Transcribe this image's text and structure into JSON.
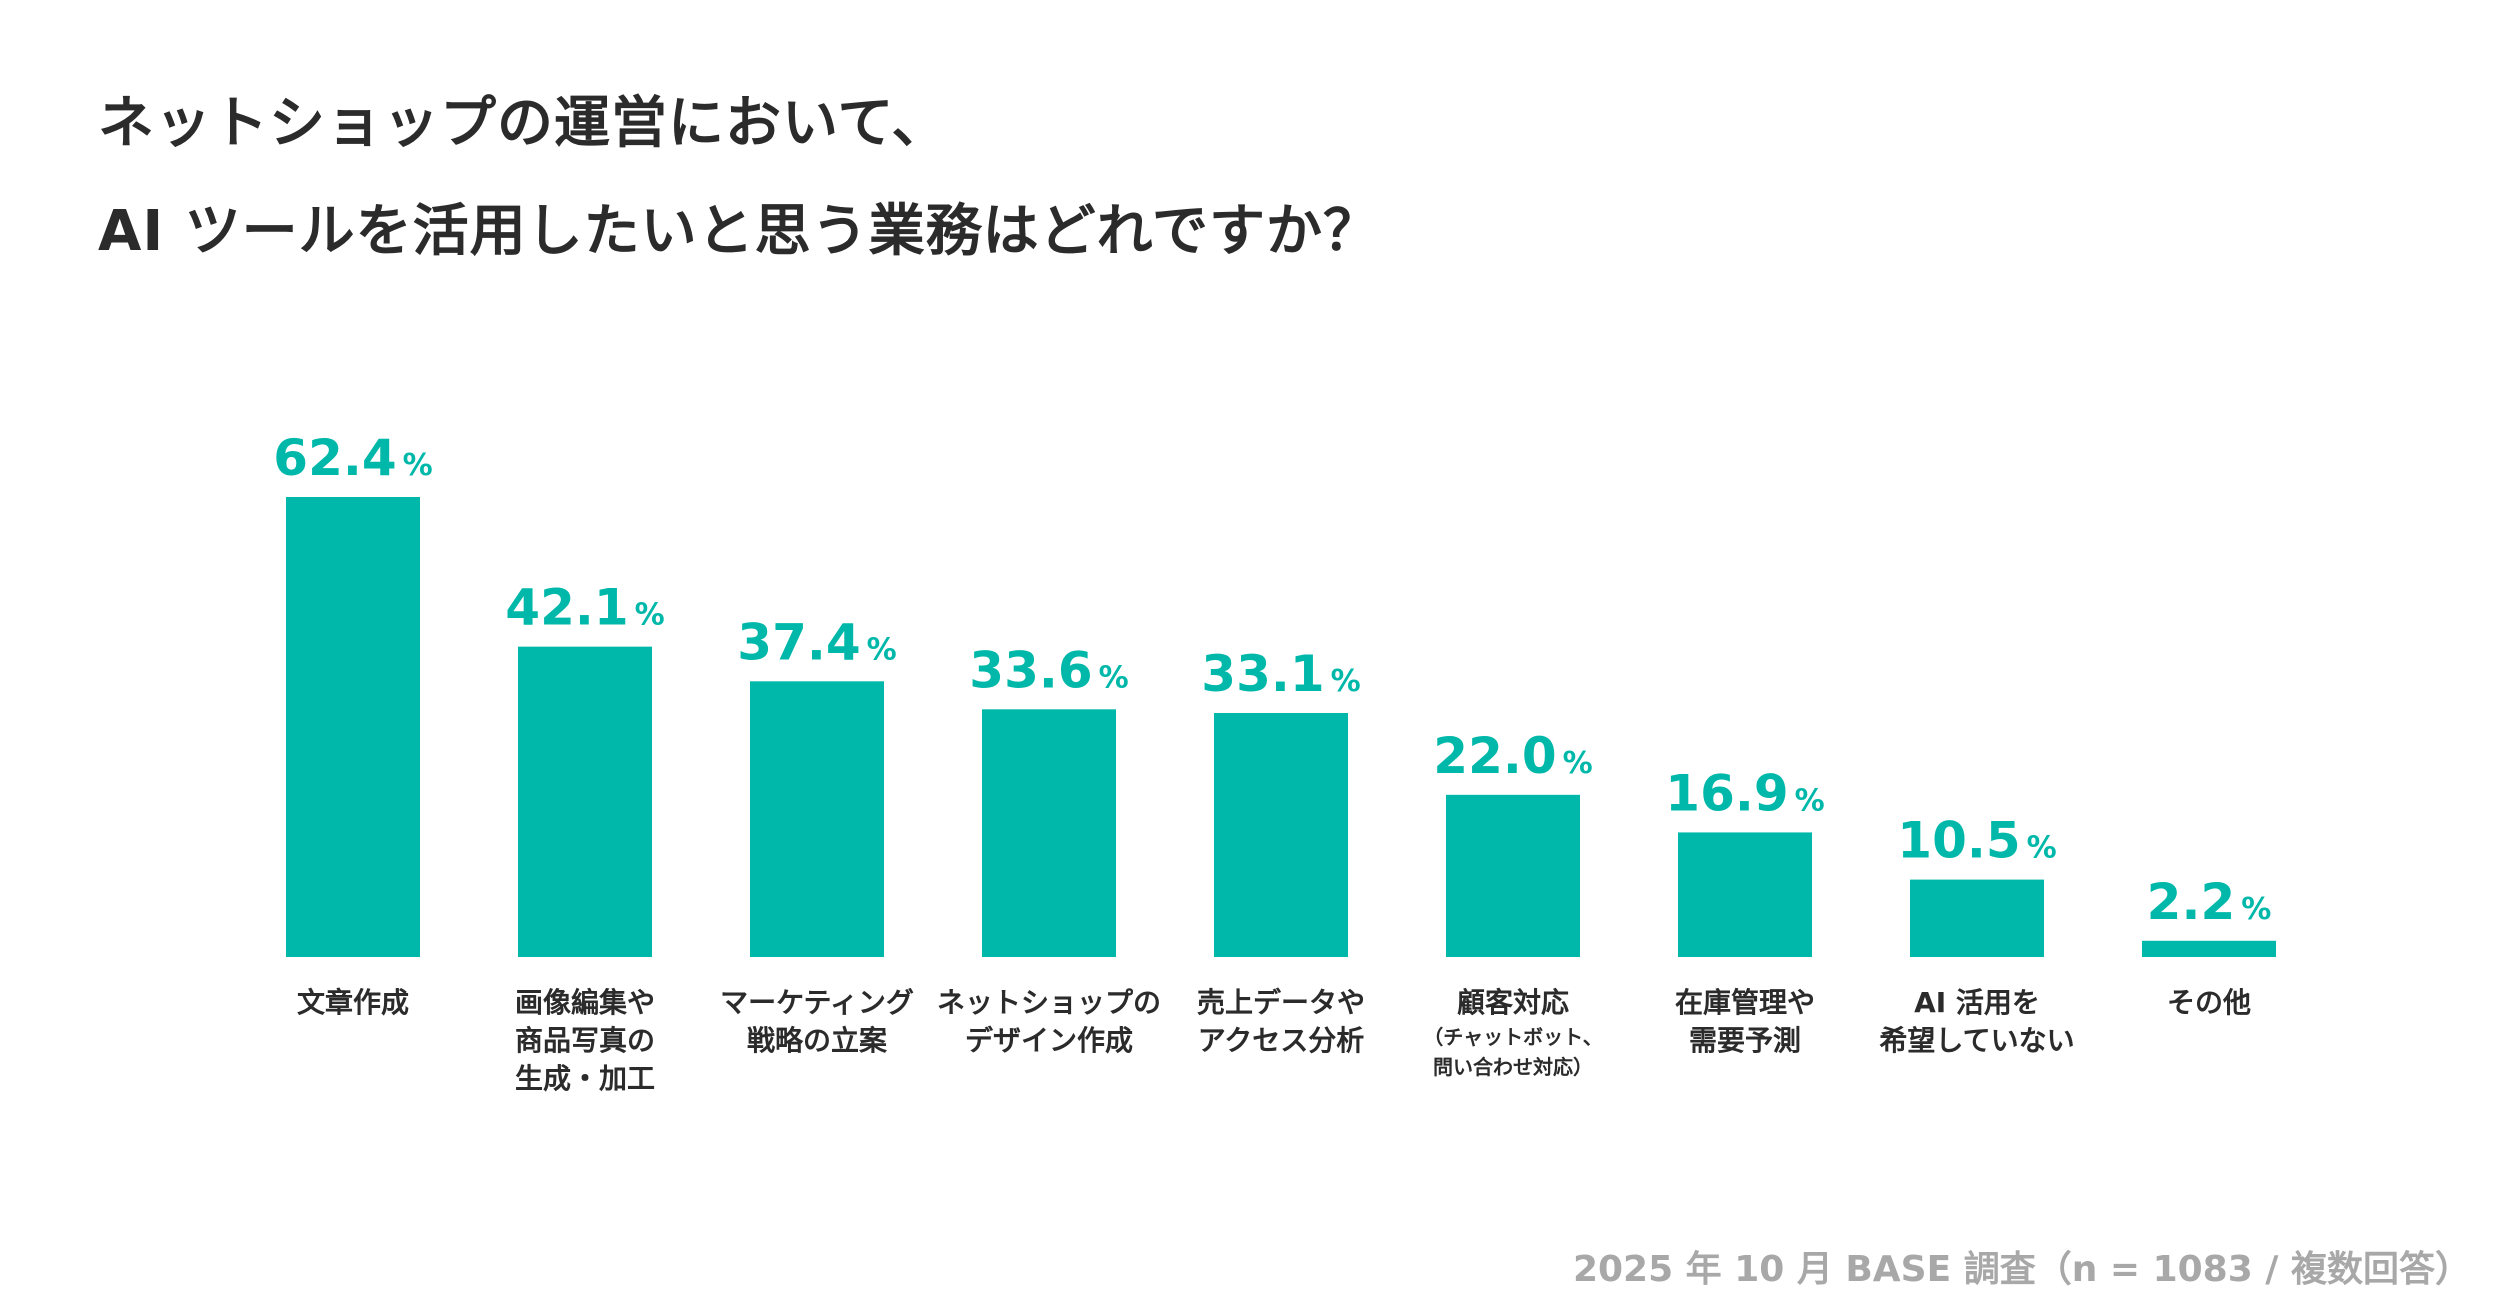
{
  "title": {
    "line1": "ネットショップの運営において、",
    "line2": "AI ツールを活用したいと思う業務はどれですか？"
  },
  "source": "2025 年 10 月 BASE 調査（n = 1083 / 複数回答）",
  "colors": {
    "bar": "#00b8a9",
    "text": "#2b2b2b",
    "source": "#a8a8a8"
  },
  "chart_data": {
    "type": "bar",
    "unit": "%",
    "categories": [
      {
        "lines": [
          "文章作成"
        ],
        "note": []
      },
      {
        "lines": [
          "画像編集や",
          "商品写真の",
          "生成・加工"
        ],
        "note": []
      },
      {
        "lines": [
          "マーケティング",
          "戦略の立案"
        ],
        "note": []
      },
      {
        "lines": [
          "ネットショップの",
          "デザイン作成"
        ],
        "note": []
      },
      {
        "lines": [
          "売上データや",
          "アクセス分析"
        ],
        "note": []
      },
      {
        "lines": [
          "顧客対応"
        ],
        "note": [
          "（チャットボット、",
          "問い合わせ対応）"
        ]
      },
      {
        "lines": [
          "在庫管理や",
          "需要予測"
        ],
        "note": []
      },
      {
        "lines": [
          "AI 活用を",
          "希望していない"
        ],
        "note": []
      },
      {
        "lines": [
          "その他"
        ],
        "note": []
      }
    ],
    "values": [
      62.4,
      42.1,
      37.4,
      33.6,
      33.1,
      22.0,
      16.9,
      10.5,
      2.2
    ],
    "value_labels": [
      "62.4",
      "42.1",
      "37.4",
      "33.6",
      "33.1",
      "22.0",
      "16.9",
      "10.5",
      "2.2"
    ],
    "ylim": [
      0,
      62.4
    ],
    "grid": false
  }
}
